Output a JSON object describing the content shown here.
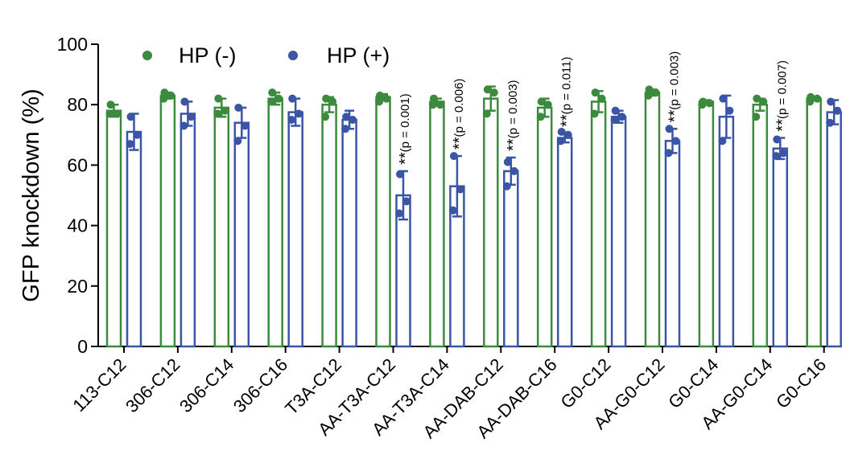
{
  "chart_data": {
    "type": "bar",
    "ylabel": "GFP knockdown (%)",
    "xlabel": "",
    "ylim": [
      0,
      100
    ],
    "yticks": [
      0,
      20,
      40,
      60,
      80,
      100
    ],
    "grid": false,
    "legend_position": "top-left",
    "categories": [
      "113-C12",
      "306-C12",
      "306-C14",
      "306-C16",
      "T3A-C12",
      "AA-T3A-C12",
      "AA-T3A-C14",
      "AA-DAB-C12",
      "AA-DAB-C16",
      "G0-C12",
      "AA-G0-C12",
      "G0-C14",
      "AA-G0-C14",
      "G0-C16"
    ],
    "series": [
      {
        "name": "HP (-)",
        "color": "#3b8a3e",
        "values": [
          78,
          83,
          79,
          82,
          80,
          82.5,
          81,
          82,
          79,
          81,
          84,
          81,
          80,
          82
        ],
        "errors": [
          2,
          1,
          3,
          2,
          2.5,
          1,
          1,
          4,
          3,
          3.5,
          1,
          0.5,
          2,
          0.5
        ],
        "points": [
          [
            80,
            77,
            77
          ],
          [
            84,
            83,
            82
          ],
          [
            82,
            78,
            77
          ],
          [
            84,
            82,
            81
          ],
          [
            82,
            81,
            76
          ],
          [
            83,
            82,
            81
          ],
          [
            82,
            80,
            80
          ],
          [
            85,
            84,
            77
          ],
          [
            81,
            80,
            76
          ],
          [
            84,
            82,
            77
          ],
          [
            85,
            84,
            83
          ],
          [
            81,
            80.5,
            80
          ],
          [
            82,
            81,
            76
          ],
          [
            82.5,
            82,
            81
          ]
        ]
      },
      {
        "name": "HP (+)",
        "color": "#3a55a6",
        "values": [
          71,
          77,
          74,
          77.5,
          75,
          50,
          53,
          58,
          69,
          76,
          68,
          76,
          65.5,
          77.5
        ],
        "errors": [
          6,
          4,
          5,
          4.5,
          3,
          8,
          10,
          4.5,
          1.5,
          2,
          4,
          7,
          3.5,
          4
        ],
        "points": [
          [
            76,
            70,
            67
          ],
          [
            81,
            76,
            73
          ],
          [
            79,
            73,
            68
          ],
          [
            82,
            77,
            75
          ],
          [
            76,
            75,
            72
          ],
          [
            57,
            48,
            44
          ],
          [
            63,
            52,
            45
          ],
          [
            61,
            58,
            53
          ],
          [
            71,
            70,
            68
          ],
          [
            78,
            76,
            75
          ],
          [
            72,
            68,
            64
          ],
          [
            82,
            78,
            68
          ],
          [
            68.5,
            64,
            63
          ],
          [
            81,
            78,
            74
          ]
        ]
      }
    ],
    "annotations": [
      {
        "category": "AA-T3A-C12",
        "stars": "**",
        "text": "(p = 0.001)"
      },
      {
        "category": "AA-T3A-C14",
        "stars": "**",
        "text": "(p = 0.006)"
      },
      {
        "category": "AA-DAB-C12",
        "stars": "**",
        "text": "(p = 0.003)"
      },
      {
        "category": "AA-DAB-C16",
        "stars": "**",
        "text": "(p = 0.011)"
      },
      {
        "category": "AA-G0-C12",
        "stars": "**",
        "text": "(p = 0.003)"
      },
      {
        "category": "AA-G0-C14",
        "stars": "**",
        "text": "(p = 0.007)"
      }
    ]
  }
}
